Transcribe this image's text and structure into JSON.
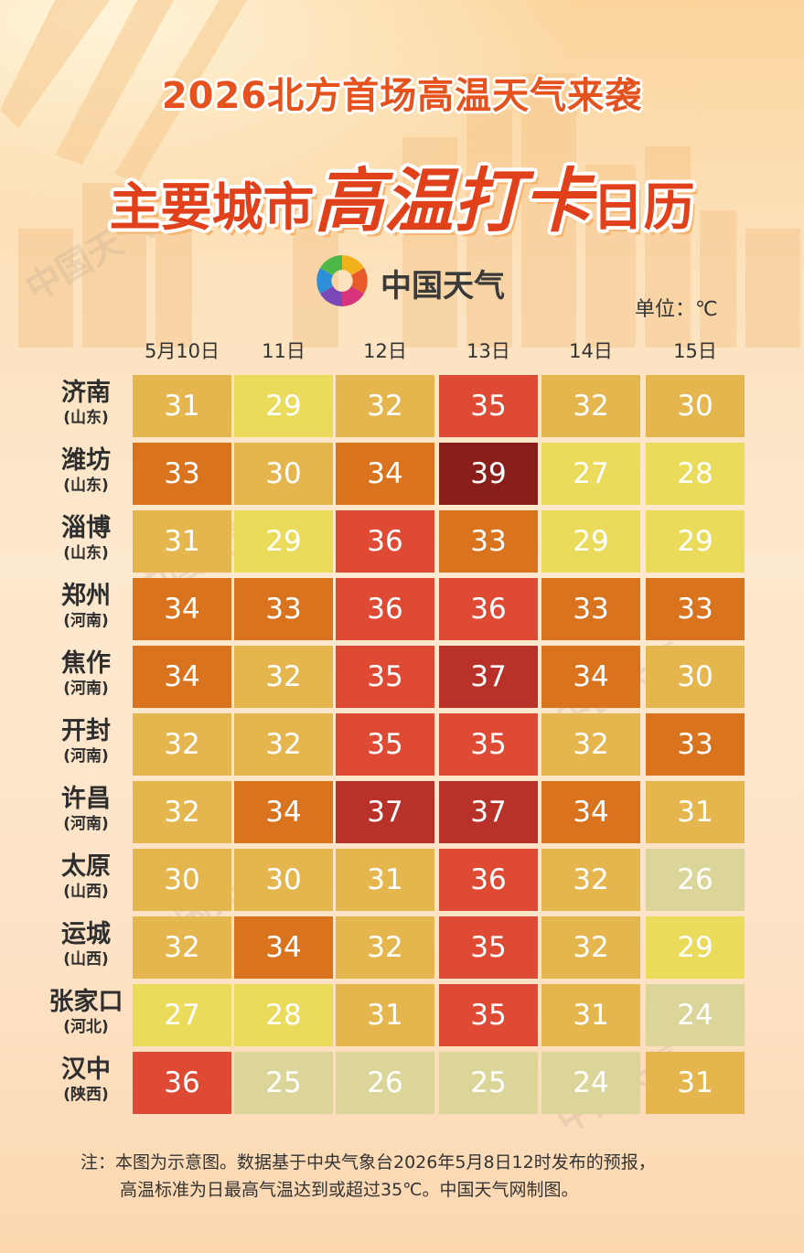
{
  "header": {
    "title_line1": "2026北方首场高温天气来袭",
    "title_line2_a": "主要城市",
    "title_line2_b": "高温打卡",
    "title_line2_c": "日历",
    "brand": "中国天气",
    "unit": "单位：℃"
  },
  "watermark": "中国天气",
  "colors": {
    "t24": "#dcd59a",
    "t25": "#dcd59a",
    "t26": "#dcd59a",
    "t27": "#ebdb5a",
    "t28": "#ebdb5a",
    "t29": "#ebdb5a",
    "t30": "#e6b64e",
    "t31": "#e6b64e",
    "t32": "#e6b64e",
    "t33": "#d9731e",
    "t34": "#d9731e",
    "t35": "#de4a33",
    "t36": "#de4a33",
    "t37": "#b83229",
    "t39": "#8a1e1a",
    "brand_red": "#e0401a"
  },
  "chart_data": {
    "type": "heatmap",
    "title": "2026北方首场高温天气来袭 主要城市高温打卡日历",
    "unit": "℃",
    "x": [
      "5月10日",
      "11日",
      "12日",
      "13日",
      "14日",
      "15日"
    ],
    "rows": [
      {
        "city": "济南",
        "province": "(山东)",
        "values": [
          31,
          29,
          32,
          35,
          32,
          30
        ]
      },
      {
        "city": "潍坊",
        "province": "(山东)",
        "values": [
          33,
          30,
          34,
          39,
          27,
          28
        ]
      },
      {
        "city": "淄博",
        "province": "(山东)",
        "values": [
          31,
          29,
          36,
          33,
          29,
          29
        ]
      },
      {
        "city": "郑州",
        "province": "(河南)",
        "values": [
          34,
          33,
          36,
          36,
          33,
          33
        ]
      },
      {
        "city": "焦作",
        "province": "(河南)",
        "values": [
          34,
          32,
          35,
          37,
          34,
          30
        ]
      },
      {
        "city": "开封",
        "province": "(河南)",
        "values": [
          32,
          32,
          35,
          35,
          32,
          33
        ]
      },
      {
        "city": "许昌",
        "province": "(河南)",
        "values": [
          32,
          34,
          37,
          37,
          34,
          31
        ]
      },
      {
        "city": "太原",
        "province": "(山西)",
        "values": [
          30,
          30,
          31,
          36,
          32,
          26
        ]
      },
      {
        "city": "运城",
        "province": "(山西)",
        "values": [
          32,
          34,
          32,
          35,
          32,
          29
        ]
      },
      {
        "city": "张家口",
        "province": "(河北)",
        "values": [
          27,
          28,
          31,
          35,
          31,
          24
        ]
      },
      {
        "city": "汉中",
        "province": "(陕西)",
        "values": [
          36,
          25,
          26,
          25,
          24,
          31
        ]
      }
    ]
  },
  "note": {
    "line1": "注：本图为示意图。数据基于中央气象台2026年5月8日12时发布的预报，",
    "line2": "高温标准为日最高气温达到或超过35℃。中国天气网制图。"
  }
}
